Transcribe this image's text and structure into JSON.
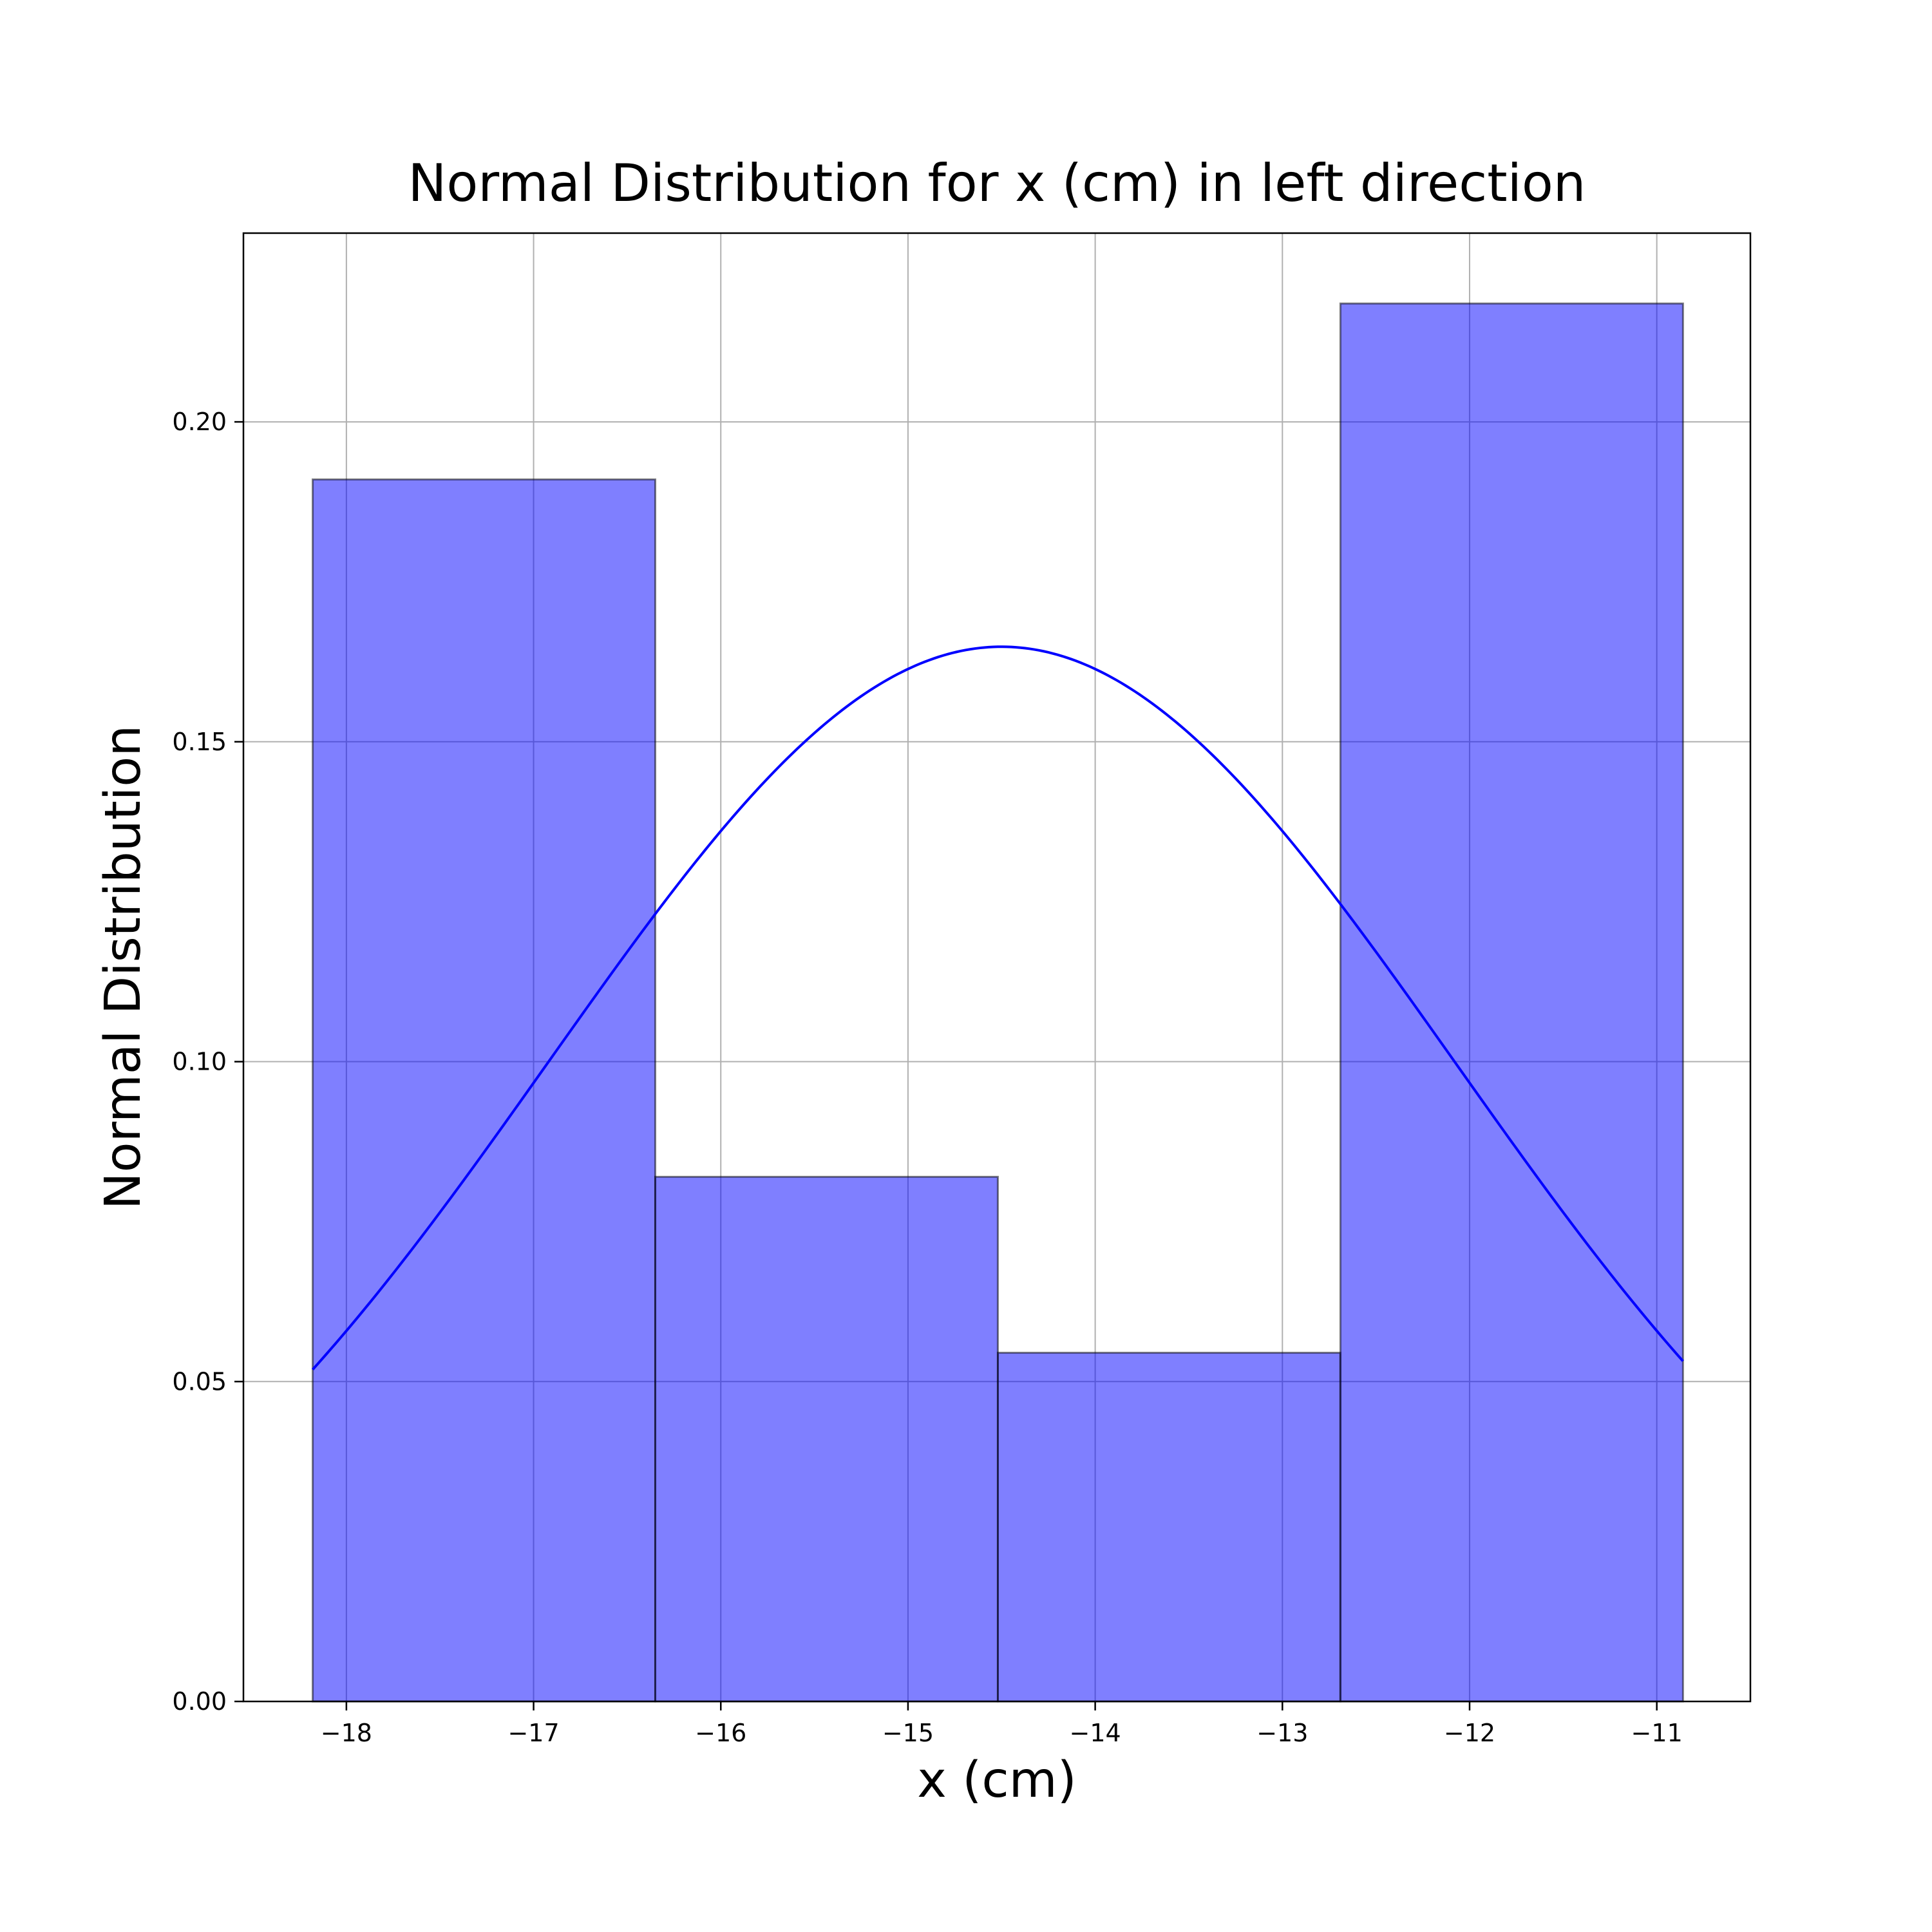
{
  "chart_data": {
    "type": "bar",
    "title": "Normal Distribution for x (cm) in left direction",
    "xlabel": "x (cm)",
    "ylabel": "Normal Distribution",
    "xlim": [
      -18.55,
      -10.5
    ],
    "ylim": [
      0,
      0.2295
    ],
    "xticks": [
      -18,
      -17,
      -16,
      -15,
      -14,
      -13,
      -12,
      -11
    ],
    "xtick_labels": [
      "−18",
      "−17",
      "−16",
      "−15",
      "−14",
      "−13",
      "−12",
      "−11"
    ],
    "yticks": [
      0.0,
      0.05,
      0.1,
      0.15,
      0.2
    ],
    "ytick_labels": [
      "0.00",
      "0.05",
      "0.10",
      "0.15",
      "0.20"
    ],
    "grid": true,
    "histogram": {
      "bin_edges": [
        -18.18,
        -16.35,
        -14.52,
        -12.69,
        -10.86
      ],
      "values": [
        0.191,
        0.082,
        0.0545,
        0.2185
      ],
      "color": "#8080ff",
      "edgecolor": "#000000"
    },
    "curve": {
      "type": "line",
      "function": "normal_pdf",
      "mean": -14.5,
      "std": 2.42,
      "x_range": [
        -18.18,
        -10.86
      ],
      "color": "#0000ff"
    }
  }
}
